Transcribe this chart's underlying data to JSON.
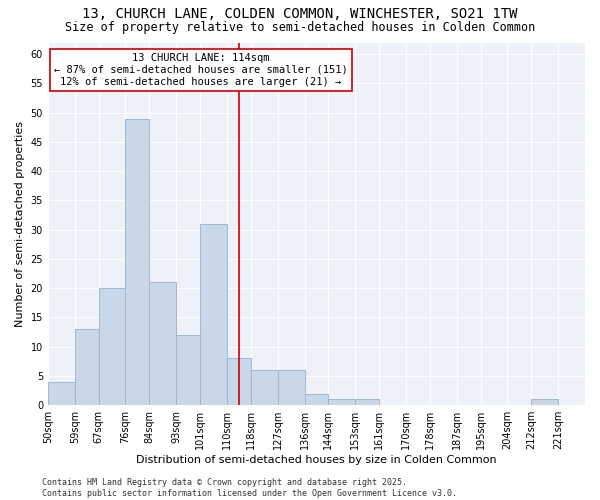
{
  "title": "13, CHURCH LANE, COLDEN COMMON, WINCHESTER, SO21 1TW",
  "subtitle": "Size of property relative to semi-detached houses in Colden Common",
  "xlabel": "Distribution of semi-detached houses by size in Colden Common",
  "ylabel": "Number of semi-detached properties",
  "bin_labels": [
    "50sqm",
    "59sqm",
    "67sqm",
    "76sqm",
    "84sqm",
    "93sqm",
    "101sqm",
    "110sqm",
    "118sqm",
    "127sqm",
    "136sqm",
    "144sqm",
    "153sqm",
    "161sqm",
    "170sqm",
    "178sqm",
    "187sqm",
    "195sqm",
    "204sqm",
    "212sqm",
    "221sqm"
  ],
  "bar_values": [
    4,
    13,
    20,
    49,
    21,
    12,
    31,
    8,
    6,
    6,
    2,
    1,
    1,
    0,
    0,
    0,
    0,
    0,
    0,
    1,
    0
  ],
  "bin_edges": [
    50,
    59,
    67,
    76,
    84,
    93,
    101,
    110,
    118,
    127,
    136,
    144,
    153,
    161,
    170,
    178,
    187,
    195,
    204,
    212,
    221,
    230
  ],
  "property_size": 114,
  "bar_color": "#c8d8e8",
  "bar_edge_color": "#a0b8d0",
  "vline_color": "#cc0000",
  "annotation_line1": "13 CHURCH LANE: 114sqm",
  "annotation_line2": "← 87% of semi-detached houses are smaller (151)",
  "annotation_line3": "12% of semi-detached houses are larger (21) →",
  "annotation_box_color": "#ffffff",
  "annotation_box_edge": "#cc0000",
  "ylim": [
    0,
    62
  ],
  "yticks": [
    0,
    5,
    10,
    15,
    20,
    25,
    30,
    35,
    40,
    45,
    50,
    55,
    60
  ],
  "background_color": "#eef2f8",
  "footer_text": "Contains HM Land Registry data © Crown copyright and database right 2025.\nContains public sector information licensed under the Open Government Licence v3.0.",
  "title_fontsize": 10,
  "subtitle_fontsize": 8.5,
  "xlabel_fontsize": 8,
  "ylabel_fontsize": 8,
  "tick_fontsize": 7,
  "annotation_fontsize": 7.5,
  "footer_fontsize": 6
}
